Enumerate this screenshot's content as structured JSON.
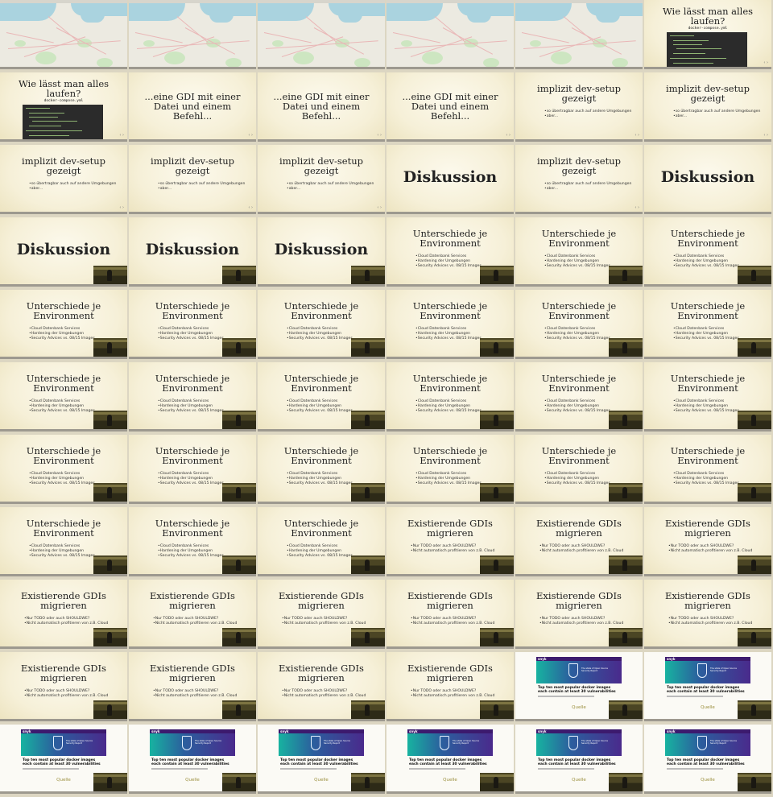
{
  "slides": {
    "wie_title": "Wie lässt man alles laufen?",
    "wie_code_caption": "docker-compose.yml",
    "gdi_title": "...eine GDI mit einer Datei und einem Befehl...",
    "dev_title": "implizit dev-setup gezeigt",
    "dev_items": [
      "so übertragbar auch auf andere Umgebungen",
      "aber..."
    ],
    "diskussion_title": "Diskussion",
    "env_title": "Unterschiede je Environment",
    "env_items": [
      "Cloud Datenbank Services",
      "Hardening der Umgebungen",
      "Security Advices vs. 08/15 Images"
    ],
    "gdis_title": "Existierende GDIs migrieren",
    "gdis_items": [
      "Nur TODO oder auch SHOULDWE?",
      "Nicht automatisch profitieren von z.B. Cloud"
    ],
    "article_logo": "snyk",
    "article_hero_text": "The state of Open Source Security Report",
    "article_headline": "Top ten most popular docker images each contain at least 30 vulnerabilities",
    "article_source": "Quelle",
    "nav_arrows": "‹ ›"
  },
  "layout_sequence": [
    "map",
    "map",
    "map",
    "map",
    "map",
    "wie",
    "wie",
    "gdi",
    "gdi",
    "gdi",
    "dev",
    "dev",
    "dev",
    "dev",
    "dev",
    "disk",
    "dev",
    "disk",
    "disk_cam",
    "disk_cam",
    "disk_cam",
    "env",
    "env",
    "env",
    "env",
    "env",
    "env",
    "env",
    "env",
    "env",
    "env",
    "env",
    "env",
    "env",
    "env",
    "env",
    "env",
    "env",
    "env",
    "env",
    "env",
    "env",
    "env",
    "env",
    "env",
    "gdis",
    "gdis",
    "gdis",
    "gdis",
    "gdis",
    "gdis",
    "gdis",
    "gdis",
    "gdis",
    "gdis",
    "gdis",
    "gdis",
    "gdis",
    "art",
    "art",
    "art",
    "art",
    "art",
    "art",
    "art",
    "art"
  ],
  "colors": {
    "slide_bg": "#f6f0d8",
    "title": "#222222",
    "source_link": "#9a8e3c",
    "article_brand": "#3c1a6e",
    "map_sea": "#aad3df"
  }
}
